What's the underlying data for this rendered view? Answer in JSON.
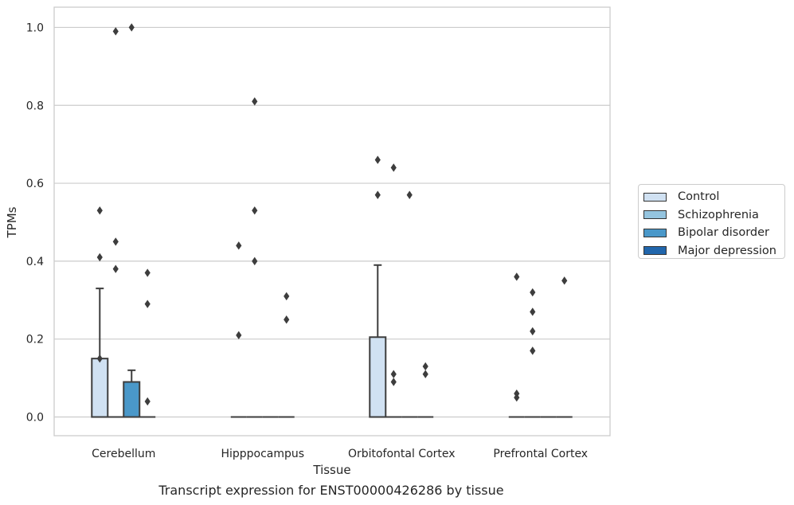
{
  "caption": "Transcript expression for ENST00000426286 by tissue",
  "chart_data": {
    "type": "box",
    "title": "",
    "xlabel": "Tissue",
    "ylabel": "TPMs",
    "ylim": [
      -0.048,
      1.052
    ],
    "yticks": [
      0.0,
      0.2,
      0.4,
      0.6,
      0.8,
      1.0
    ],
    "ytick_labels": [
      "0.0",
      "0.2",
      "0.4",
      "0.6",
      "0.8",
      "1.0"
    ],
    "grid": true,
    "legend_position": "right",
    "categories": [
      "Cerebellum",
      "Hipppocampus",
      "Orbitofontal Cortex",
      "Prefrontal Cortex"
    ],
    "series": [
      {
        "name": "Control",
        "color": "#d0e1f2",
        "boxes": [
          {
            "q1": 0.0,
            "median": 0.0,
            "q3": 0.15,
            "whisker_low": 0.0,
            "whisker_high": 0.33,
            "outliers": [
              0.53,
              0.41,
              0.15
            ]
          },
          {
            "q1": 0.0,
            "median": 0.0,
            "q3": 0.0,
            "whisker_low": 0.0,
            "whisker_high": 0.0,
            "outliers": [
              0.44,
              0.21
            ]
          },
          {
            "q1": 0.0,
            "median": 0.0,
            "q3": 0.205,
            "whisker_low": 0.0,
            "whisker_high": 0.39,
            "outliers": [
              0.66,
              0.57
            ]
          },
          {
            "q1": 0.0,
            "median": 0.0,
            "q3": 0.0,
            "whisker_low": 0.0,
            "whisker_high": 0.0,
            "outliers": [
              0.36,
              0.06,
              0.05
            ]
          }
        ]
      },
      {
        "name": "Schizophrenia",
        "color": "#94c4df",
        "boxes": [
          {
            "q1": 0.0,
            "median": 0.0,
            "q3": 0.0,
            "whisker_low": 0.0,
            "whisker_high": 0.0,
            "outliers": [
              0.99,
              0.45,
              0.38
            ]
          },
          {
            "q1": 0.0,
            "median": 0.0,
            "q3": 0.0,
            "whisker_low": 0.0,
            "whisker_high": 0.0,
            "outliers": [
              0.81,
              0.53,
              0.4
            ]
          },
          {
            "q1": 0.0,
            "median": 0.0,
            "q3": 0.0,
            "whisker_low": 0.0,
            "whisker_high": 0.0,
            "outliers": [
              0.64,
              0.11,
              0.09
            ]
          },
          {
            "q1": 0.0,
            "median": 0.0,
            "q3": 0.0,
            "whisker_low": 0.0,
            "whisker_high": 0.0,
            "outliers": [
              0.22,
              0.32,
              0.27,
              0.17
            ]
          }
        ]
      },
      {
        "name": "Bipolar disorder",
        "color": "#4a98c9",
        "boxes": [
          {
            "q1": 0.0,
            "median": 0.0,
            "q3": 0.09,
            "whisker_low": 0.0,
            "whisker_high": 0.12,
            "outliers": [
              1.0
            ]
          },
          {
            "q1": 0.0,
            "median": 0.0,
            "q3": 0.0,
            "whisker_low": 0.0,
            "whisker_high": 0.0,
            "outliers": []
          },
          {
            "q1": 0.0,
            "median": 0.0,
            "q3": 0.0,
            "whisker_low": 0.0,
            "whisker_high": 0.0,
            "outliers": [
              0.57
            ]
          },
          {
            "q1": 0.0,
            "median": 0.0,
            "q3": 0.0,
            "whisker_low": 0.0,
            "whisker_high": 0.0,
            "outliers": []
          }
        ]
      },
      {
        "name": "Major depression",
        "color": "#2166ac",
        "boxes": [
          {
            "q1": 0.0,
            "median": 0.0,
            "q3": 0.0,
            "whisker_low": 0.0,
            "whisker_high": 0.0,
            "outliers": [
              0.37,
              0.29,
              0.04
            ]
          },
          {
            "q1": 0.0,
            "median": 0.0,
            "q3": 0.0,
            "whisker_low": 0.0,
            "whisker_high": 0.0,
            "outliers": [
              0.31,
              0.25
            ]
          },
          {
            "q1": 0.0,
            "median": 0.0,
            "q3": 0.0,
            "whisker_low": 0.0,
            "whisker_high": 0.0,
            "outliers": [
              0.13,
              0.11
            ]
          },
          {
            "q1": 0.0,
            "median": 0.0,
            "q3": 0.0,
            "whisker_low": 0.0,
            "whisker_high": 0.0,
            "outliers": [
              0.35
            ]
          }
        ]
      }
    ]
  }
}
